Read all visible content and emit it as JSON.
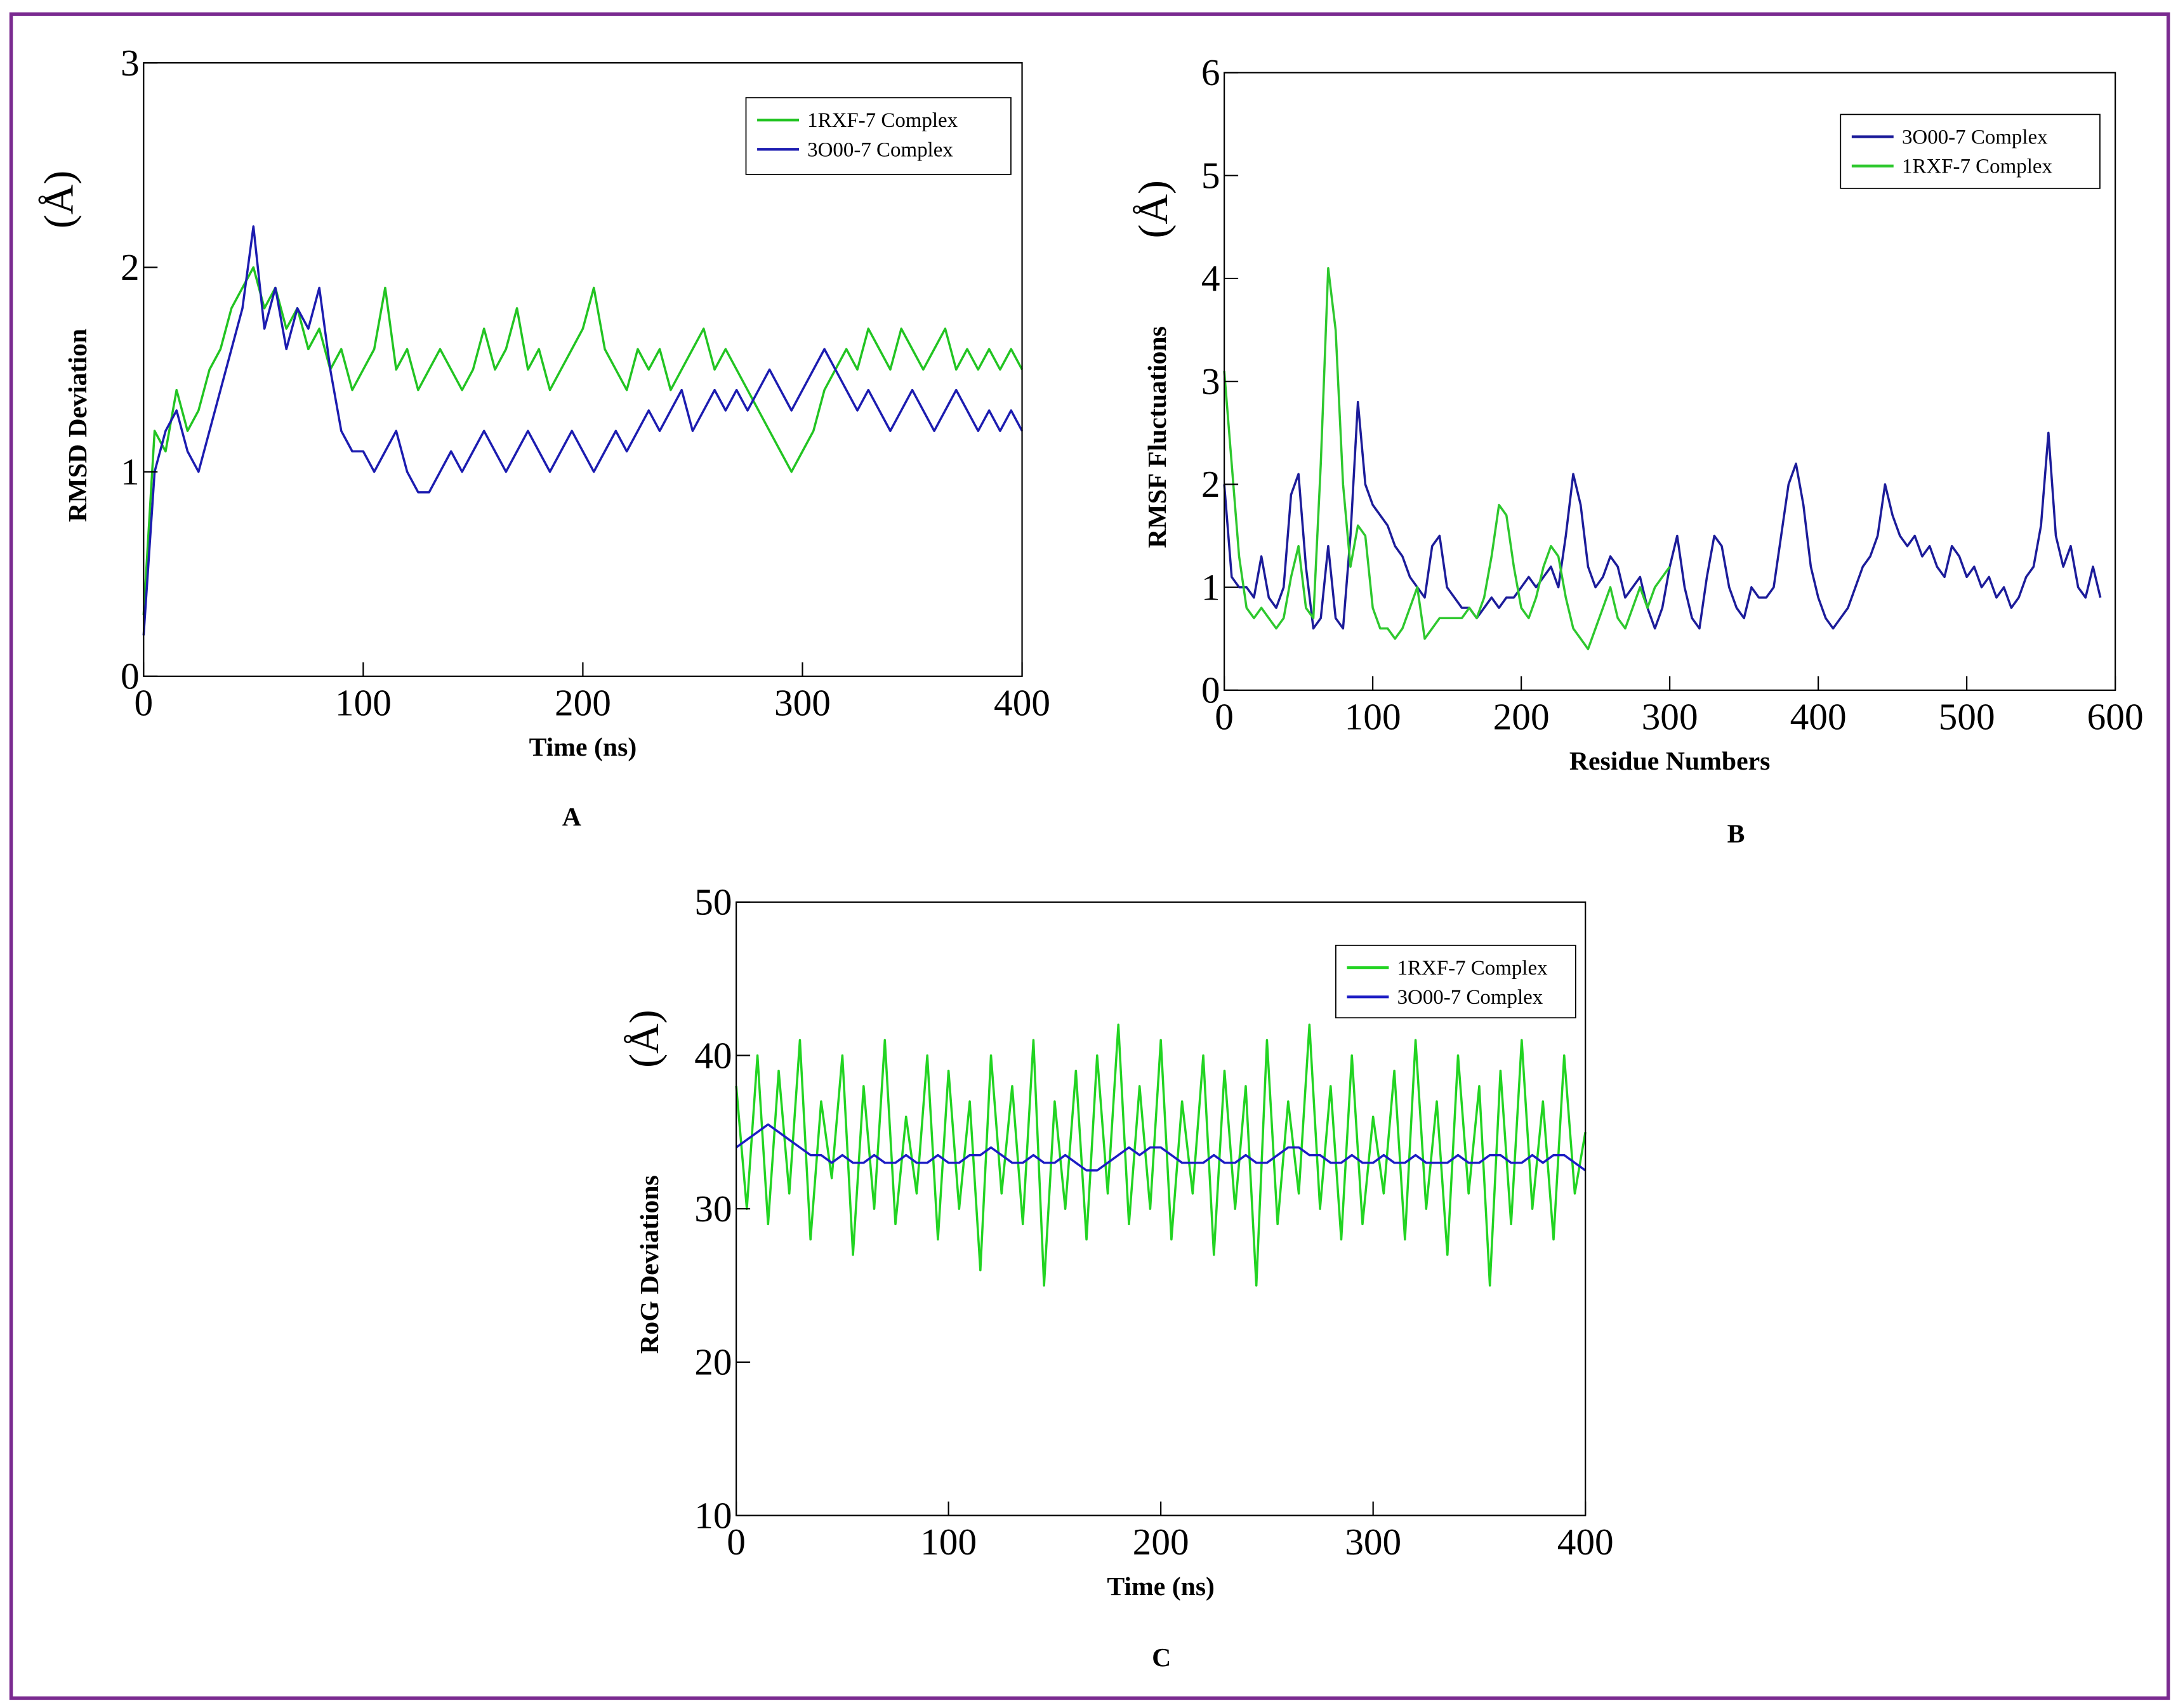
{
  "chart_data": [
    {
      "type": "line",
      "panel_label": "A",
      "ylabel": "RMSD Deviation",
      "yunit": "(Å)",
      "xlabel": "Time (ns)",
      "xlim": [
        0,
        400
      ],
      "xticks": [
        0,
        100,
        200,
        300,
        400
      ],
      "ylim": [
        0,
        3
      ],
      "yticks": [
        0,
        1,
        2,
        3
      ],
      "x": [
        0,
        5,
        10,
        15,
        20,
        25,
        30,
        35,
        40,
        45,
        50,
        55,
        60,
        65,
        70,
        75,
        80,
        85,
        90,
        95,
        100,
        105,
        110,
        115,
        120,
        125,
        130,
        135,
        140,
        145,
        150,
        155,
        160,
        165,
        170,
        175,
        180,
        185,
        190,
        195,
        200,
        205,
        210,
        215,
        220,
        225,
        230,
        235,
        240,
        245,
        250,
        255,
        260,
        265,
        270,
        275,
        280,
        285,
        290,
        295,
        300,
        305,
        310,
        315,
        320,
        325,
        330,
        335,
        340,
        345,
        350,
        355,
        360,
        365,
        370,
        375,
        380,
        385,
        390,
        395,
        400
      ],
      "series": [
        {
          "name": "1RXF-7 Complex",
          "color": "#22c422",
          "values": [
            0.3,
            1.2,
            1.1,
            1.4,
            1.2,
            1.3,
            1.5,
            1.6,
            1.8,
            1.9,
            2.0,
            1.8,
            1.9,
            1.7,
            1.8,
            1.6,
            1.7,
            1.5,
            1.6,
            1.4,
            1.5,
            1.6,
            1.9,
            1.5,
            1.6,
            1.4,
            1.5,
            1.6,
            1.5,
            1.4,
            1.5,
            1.7,
            1.5,
            1.6,
            1.8,
            1.5,
            1.6,
            1.4,
            1.5,
            1.6,
            1.7,
            1.9,
            1.6,
            1.5,
            1.4,
            1.6,
            1.5,
            1.6,
            1.4,
            1.5,
            1.6,
            1.7,
            1.5,
            1.6,
            1.5,
            1.4,
            1.3,
            1.2,
            1.1,
            1.0,
            1.1,
            1.2,
            1.4,
            1.5,
            1.6,
            1.5,
            1.7,
            1.6,
            1.5,
            1.7,
            1.6,
            1.5,
            1.6,
            1.7,
            1.5,
            1.6,
            1.5,
            1.6,
            1.5,
            1.6,
            1.5
          ]
        },
        {
          "name": "3O00-7 Complex",
          "color": "#1c1cb0",
          "values": [
            0.2,
            1.0,
            1.2,
            1.3,
            1.1,
            1.0,
            1.2,
            1.4,
            1.6,
            1.8,
            2.2,
            1.7,
            1.9,
            1.6,
            1.8,
            1.7,
            1.9,
            1.5,
            1.2,
            1.1,
            1.1,
            1.0,
            1.1,
            1.2,
            1.0,
            0.9,
            0.9,
            1.0,
            1.1,
            1.0,
            1.1,
            1.2,
            1.1,
            1.0,
            1.1,
            1.2,
            1.1,
            1.0,
            1.1,
            1.2,
            1.1,
            1.0,
            1.1,
            1.2,
            1.1,
            1.2,
            1.3,
            1.2,
            1.3,
            1.4,
            1.2,
            1.3,
            1.4,
            1.3,
            1.4,
            1.3,
            1.4,
            1.5,
            1.4,
            1.3,
            1.4,
            1.5,
            1.6,
            1.5,
            1.4,
            1.3,
            1.4,
            1.3,
            1.2,
            1.3,
            1.4,
            1.3,
            1.2,
            1.3,
            1.4,
            1.3,
            1.2,
            1.3,
            1.2,
            1.3,
            1.2
          ]
        }
      ]
    },
    {
      "type": "line",
      "panel_label": "B",
      "ylabel": "RMSF Fluctuations",
      "yunit": "(Å)",
      "xlabel": "Residue Numbers",
      "xlim": [
        0,
        600
      ],
      "xticks": [
        0,
        100,
        200,
        300,
        400,
        500,
        600
      ],
      "ylim": [
        0,
        6
      ],
      "yticks": [
        0,
        1,
        2,
        3,
        4,
        5,
        6
      ],
      "series": [
        {
          "name": "3O00-7 Complex",
          "color": "#1c1c9a",
          "x": [
            0,
            5,
            10,
            15,
            20,
            25,
            30,
            35,
            40,
            45,
            50,
            55,
            60,
            65,
            70,
            75,
            80,
            85,
            90,
            95,
            100,
            105,
            110,
            115,
            120,
            125,
            130,
            135,
            140,
            145,
            150,
            155,
            160,
            165,
            170,
            175,
            180,
            185,
            190,
            195,
            200,
            205,
            210,
            215,
            220,
            225,
            230,
            235,
            240,
            245,
            250,
            255,
            260,
            265,
            270,
            275,
            280,
            285,
            290,
            295,
            300,
            305,
            310,
            315,
            320,
            325,
            330,
            335,
            340,
            345,
            350,
            355,
            360,
            365,
            370,
            375,
            380,
            385,
            390,
            395,
            400,
            405,
            410,
            415,
            420,
            425,
            430,
            435,
            440,
            445,
            450,
            455,
            460,
            465,
            470,
            475,
            480,
            485,
            490,
            495,
            500,
            505,
            510,
            515,
            520,
            525,
            530,
            535,
            540,
            545,
            550,
            555,
            560,
            565,
            570,
            575,
            580,
            585,
            590
          ],
          "values": [
            2.0,
            1.1,
            1.0,
            1.0,
            0.9,
            1.3,
            0.9,
            0.8,
            1.0,
            1.9,
            2.1,
            1.2,
            0.6,
            0.7,
            1.4,
            0.7,
            0.6,
            1.5,
            2.8,
            2.0,
            1.8,
            1.7,
            1.6,
            1.4,
            1.3,
            1.1,
            1.0,
            0.9,
            1.4,
            1.5,
            1.0,
            0.9,
            0.8,
            0.8,
            0.7,
            0.8,
            0.9,
            0.8,
            0.9,
            0.9,
            1.0,
            1.1,
            1.0,
            1.1,
            1.2,
            1.0,
            1.5,
            2.1,
            1.8,
            1.2,
            1.0,
            1.1,
            1.3,
            1.2,
            0.9,
            1.0,
            1.1,
            0.8,
            0.6,
            0.8,
            1.2,
            1.5,
            1.0,
            0.7,
            0.6,
            1.1,
            1.5,
            1.4,
            1.0,
            0.8,
            0.7,
            1.0,
            0.9,
            0.9,
            1.0,
            1.5,
            2.0,
            2.2,
            1.8,
            1.2,
            0.9,
            0.7,
            0.6,
            0.7,
            0.8,
            1.0,
            1.2,
            1.3,
            1.5,
            2.0,
            1.7,
            1.5,
            1.4,
            1.5,
            1.3,
            1.4,
            1.2,
            1.1,
            1.4,
            1.3,
            1.1,
            1.2,
            1.0,
            1.1,
            0.9,
            1.0,
            0.8,
            0.9,
            1.1,
            1.2,
            1.6,
            2.5,
            1.5,
            1.2,
            1.4,
            1.0,
            0.9,
            1.2,
            0.9
          ]
        },
        {
          "name": "1RXF-7 Complex",
          "color": "#2ec82e",
          "x": [
            0,
            5,
            10,
            15,
            20,
            25,
            30,
            35,
            40,
            45,
            50,
            55,
            60,
            65,
            70,
            75,
            80,
            85,
            90,
            95,
            100,
            105,
            110,
            115,
            120,
            125,
            130,
            135,
            140,
            145,
            150,
            155,
            160,
            165,
            170,
            175,
            180,
            185,
            190,
            195,
            200,
            205,
            210,
            215,
            220,
            225,
            230,
            235,
            240,
            245,
            250,
            255,
            260,
            265,
            270,
            275,
            280,
            285,
            290,
            295,
            300
          ],
          "values": [
            3.1,
            2.2,
            1.3,
            0.8,
            0.7,
            0.8,
            0.7,
            0.6,
            0.7,
            1.1,
            1.4,
            0.8,
            0.7,
            2.2,
            4.1,
            3.5,
            2.0,
            1.2,
            1.6,
            1.5,
            0.8,
            0.6,
            0.6,
            0.5,
            0.6,
            0.8,
            1.0,
            0.5,
            0.6,
            0.7,
            0.7,
            0.7,
            0.7,
            0.8,
            0.7,
            0.9,
            1.3,
            1.8,
            1.7,
            1.2,
            0.8,
            0.7,
            0.9,
            1.2,
            1.4,
            1.3,
            0.9,
            0.6,
            0.5,
            0.4,
            0.6,
            0.8,
            1.0,
            0.7,
            0.6,
            0.8,
            1.0,
            0.8,
            1.0,
            1.1,
            1.2
          ]
        }
      ]
    },
    {
      "type": "line",
      "panel_label": "C",
      "ylabel": "RoG Deviations",
      "yunit": "(Å)",
      "xlabel": "Time (ns)",
      "xlim": [
        0,
        400
      ],
      "xticks": [
        0,
        100,
        200,
        300,
        400
      ],
      "ylim": [
        10,
        50
      ],
      "yticks": [
        10,
        20,
        30,
        40,
        50
      ],
      "x": [
        0,
        5,
        10,
        15,
        20,
        25,
        30,
        35,
        40,
        45,
        50,
        55,
        60,
        65,
        70,
        75,
        80,
        85,
        90,
        95,
        100,
        105,
        110,
        115,
        120,
        125,
        130,
        135,
        140,
        145,
        150,
        155,
        160,
        165,
        170,
        175,
        180,
        185,
        190,
        195,
        200,
        205,
        210,
        215,
        220,
        225,
        230,
        235,
        240,
        245,
        250,
        255,
        260,
        265,
        270,
        275,
        280,
        285,
        290,
        295,
        300,
        305,
        310,
        315,
        320,
        325,
        330,
        335,
        340,
        345,
        350,
        355,
        360,
        365,
        370,
        375,
        380,
        385,
        390,
        395,
        400
      ],
      "series": [
        {
          "name": "1RXF-7 Complex",
          "color": "#22d422",
          "values": [
            38,
            30,
            40,
            29,
            39,
            31,
            41,
            28,
            37,
            32,
            40,
            27,
            38,
            30,
            41,
            29,
            36,
            31,
            40,
            28,
            39,
            30,
            37,
            26,
            40,
            31,
            38,
            29,
            41,
            25,
            37,
            30,
            39,
            28,
            40,
            31,
            42,
            29,
            38,
            30,
            41,
            28,
            37,
            31,
            40,
            27,
            39,
            30,
            38,
            25,
            41,
            29,
            37,
            31,
            42,
            30,
            38,
            28,
            40,
            29,
            36,
            31,
            39,
            28,
            41,
            30,
            37,
            27,
            40,
            31,
            38,
            25,
            39,
            29,
            41,
            30,
            37,
            28,
            40,
            31,
            35
          ]
        },
        {
          "name": "3O00-7 Complex",
          "color": "#1c1cc4",
          "values": [
            34,
            34.5,
            35,
            35.5,
            35,
            34.5,
            34,
            33.5,
            33.5,
            33,
            33.5,
            33,
            33,
            33.5,
            33,
            33,
            33.5,
            33,
            33,
            33.5,
            33,
            33,
            33.5,
            33.5,
            34,
            33.5,
            33,
            33,
            33.5,
            33,
            33,
            33.5,
            33,
            32.5,
            32.5,
            33,
            33.5,
            34,
            33.5,
            34,
            34,
            33.5,
            33,
            33,
            33,
            33.5,
            33,
            33,
            33.5,
            33,
            33,
            33.5,
            34,
            34,
            33.5,
            33.5,
            33,
            33,
            33.5,
            33,
            33,
            33.5,
            33,
            33,
            33.5,
            33,
            33,
            33,
            33.5,
            33,
            33,
            33.5,
            33.5,
            33,
            33,
            33.5,
            33,
            33.5,
            33.5,
            33,
            32.5
          ]
        }
      ]
    }
  ]
}
